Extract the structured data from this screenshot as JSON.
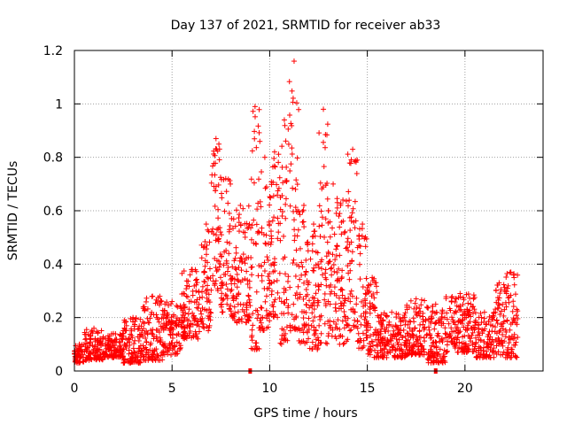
{
  "chart_data": {
    "type": "scatter",
    "title": "Day 137 of 2021, SRMTID for receiver ab33",
    "xlabel": "GPS time / hours",
    "ylabel": "SRMTID / TECUs",
    "xlim": [
      0,
      24
    ],
    "ylim": [
      0,
      1.2
    ],
    "x_ticks": [
      0,
      5,
      10,
      15,
      20
    ],
    "x_tick_labels": [
      "0",
      "5",
      "10",
      "15",
      "20"
    ],
    "y_ticks": [
      0,
      0.2,
      0.4,
      0.6,
      0.8,
      1,
      1.2
    ],
    "y_tick_labels": [
      "0",
      "0.2",
      "0.4",
      "0.6",
      "0.8",
      "1",
      "1.2"
    ],
    "grid": true,
    "marker": "plus",
    "series_color": "#ff0000",
    "gap_markers_x": [
      9.0,
      18.5
    ],
    "series": [
      {
        "name": "SRMTID",
        "envelope": [
          {
            "x": [
              0.0,
              0.5
            ],
            "y_range": [
              0.03,
              0.1
            ]
          },
          {
            "x": [
              0.5,
              1.5
            ],
            "y_range": [
              0.04,
              0.16
            ]
          },
          {
            "x": [
              1.5,
              2.5
            ],
            "y_range": [
              0.05,
              0.14
            ]
          },
          {
            "x": [
              2.5,
              3.5
            ],
            "y_range": [
              0.03,
              0.2
            ]
          },
          {
            "x": [
              3.5,
              4.5
            ],
            "y_range": [
              0.04,
              0.28
            ]
          },
          {
            "x": [
              4.5,
              5.5
            ],
            "y_range": [
              0.06,
              0.26
            ]
          },
          {
            "x": [
              5.5,
              6.5
            ],
            "y_range": [
              0.12,
              0.38
            ]
          },
          {
            "x": [
              6.5,
              7.0
            ],
            "y_range": [
              0.15,
              0.55
            ]
          },
          {
            "x": [
              7.0,
              7.5
            ],
            "y_range": [
              0.3,
              0.87
            ]
          },
          {
            "x": [
              7.5,
              8.0
            ],
            "y_range": [
              0.22,
              0.72
            ]
          },
          {
            "x": [
              8.0,
              9.0
            ],
            "y_range": [
              0.18,
              0.62
            ]
          },
          {
            "x": [
              9.0,
              9.5
            ],
            "y_range": [
              0.08,
              0.99
            ]
          },
          {
            "x": [
              9.5,
              10.0
            ],
            "y_range": [
              0.15,
              0.8
            ]
          },
          {
            "x": [
              10.0,
              10.5
            ],
            "y_range": [
              0.2,
              0.82
            ]
          },
          {
            "x": [
              10.5,
              11.0
            ],
            "y_range": [
              0.1,
              0.94
            ]
          },
          {
            "x": [
              11.0,
              11.5
            ],
            "y_range": [
              0.15,
              1.16
            ]
          },
          {
            "x": [
              11.5,
              12.0
            ],
            "y_range": [
              0.1,
              0.62
            ]
          },
          {
            "x": [
              12.0,
              12.5
            ],
            "y_range": [
              0.08,
              0.55
            ]
          },
          {
            "x": [
              12.5,
              13.0
            ],
            "y_range": [
              0.1,
              0.98
            ]
          },
          {
            "x": [
              13.0,
              13.5
            ],
            "y_range": [
              0.12,
              0.7
            ]
          },
          {
            "x": [
              13.5,
              14.0
            ],
            "y_range": [
              0.1,
              0.64
            ]
          },
          {
            "x": [
              14.0,
              14.5
            ],
            "y_range": [
              0.15,
              0.83
            ]
          },
          {
            "x": [
              14.5,
              15.0
            ],
            "y_range": [
              0.08,
              0.55
            ]
          },
          {
            "x": [
              15.0,
              15.5
            ],
            "y_range": [
              0.05,
              0.35
            ]
          },
          {
            "x": [
              15.5,
              17.0
            ],
            "y_range": [
              0.05,
              0.22
            ]
          },
          {
            "x": [
              17.0,
              18.0
            ],
            "y_range": [
              0.06,
              0.27
            ]
          },
          {
            "x": [
              18.0,
              19.0
            ],
            "y_range": [
              0.03,
              0.25
            ]
          },
          {
            "x": [
              19.0,
              20.5
            ],
            "y_range": [
              0.07,
              0.29
            ]
          },
          {
            "x": [
              20.5,
              21.5
            ],
            "y_range": [
              0.05,
              0.22
            ]
          },
          {
            "x": [
              21.5,
              22.0
            ],
            "y_range": [
              0.06,
              0.33
            ]
          },
          {
            "x": [
              22.0,
              22.7
            ],
            "y_range": [
              0.05,
              0.37
            ]
          }
        ]
      }
    ]
  }
}
